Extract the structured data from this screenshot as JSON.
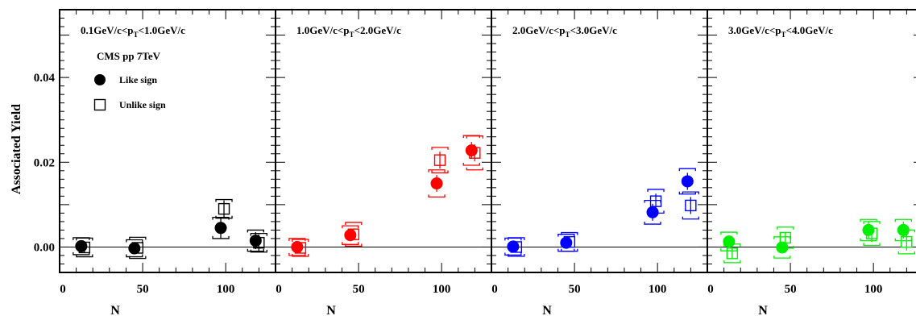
{
  "chart_data": {
    "type": "scatter",
    "ylabel": "Associated Yield",
    "xlabel": "N",
    "ylim": [
      -0.006,
      0.056
    ],
    "xlim": [
      0,
      130
    ],
    "yticks": [
      "0.00",
      "0.02",
      "0.04"
    ],
    "ytick_values": [
      0,
      0.02,
      0.04
    ],
    "xticks": [
      "0",
      "50",
      "100"
    ],
    "xtick_values": [
      0,
      50,
      100
    ],
    "legend": {
      "system": "CMS pp 7TeV",
      "entries": [
        {
          "marker": "filled-circle",
          "label": "Like sign"
        },
        {
          "marker": "open-square",
          "label": "Unlike sign"
        }
      ]
    },
    "panels": [
      {
        "title": "0.1GeV/c<p",
        "title_sub": "T",
        "title_rest": "<1.0GeV/c",
        "color": "#000000",
        "like": [
          {
            "x": 14,
            "y": 0.0002,
            "err": 0.0013,
            "sys": 0.002
          },
          {
            "x": 46,
            "y": -0.0003,
            "err": 0.0013,
            "sys": 0.002
          },
          {
            "x": 98,
            "y": 0.0045,
            "err": 0.0025,
            "sys": 0.0025
          },
          {
            "x": 119,
            "y": 0.0015,
            "err": 0.002,
            "sys": 0.0025
          }
        ],
        "unlike": [
          {
            "x": 14,
            "y": -0.0001,
            "err": 0.0013,
            "sys": 0.0022
          },
          {
            "x": 46,
            "y": -0.0002,
            "err": 0.0013,
            "sys": 0.0025
          },
          {
            "x": 98,
            "y": 0.009,
            "err": 0.002,
            "sys": 0.0022
          },
          {
            "x": 119,
            "y": 0.001,
            "err": 0.002,
            "sys": 0.0022
          }
        ]
      },
      {
        "title": "1.0GeV/c<p",
        "title_sub": "T",
        "title_rest": "<2.0GeV/c",
        "color": "#ff0000",
        "like": [
          {
            "x": 14,
            "y": 0.0,
            "err": 0.0012,
            "sys": 0.002
          },
          {
            "x": 46,
            "y": 0.0028,
            "err": 0.0012,
            "sys": 0.0022
          },
          {
            "x": 98,
            "y": 0.015,
            "err": 0.002,
            "sys": 0.0032
          },
          {
            "x": 119,
            "y": 0.0228,
            "err": 0.002,
            "sys": 0.0035
          }
        ],
        "unlike": [
          {
            "x": 14,
            "y": -0.0002,
            "err": 0.0012,
            "sys": 0.002
          },
          {
            "x": 46,
            "y": 0.003,
            "err": 0.0012,
            "sys": 0.0028
          },
          {
            "x": 98,
            "y": 0.0205,
            "err": 0.002,
            "sys": 0.003
          },
          {
            "x": 119,
            "y": 0.0222,
            "err": 0.002,
            "sys": 0.004
          }
        ]
      },
      {
        "title": "2.0GeV/c<p",
        "title_sub": "T",
        "title_rest": "<3.0GeV/c",
        "color": "#0000ff",
        "like": [
          {
            "x": 14,
            "y": 0.0001,
            "err": 0.0012,
            "sys": 0.002
          },
          {
            "x": 46,
            "y": 0.001,
            "err": 0.0012,
            "sys": 0.002
          },
          {
            "x": 98,
            "y": 0.0082,
            "err": 0.002,
            "sys": 0.0028
          },
          {
            "x": 119,
            "y": 0.0155,
            "err": 0.002,
            "sys": 0.003
          }
        ],
        "unlike": [
          {
            "x": 14,
            "y": 0.0,
            "err": 0.0012,
            "sys": 0.0022
          },
          {
            "x": 46,
            "y": 0.0012,
            "err": 0.0012,
            "sys": 0.0022
          },
          {
            "x": 98,
            "y": 0.0108,
            "err": 0.0018,
            "sys": 0.0028
          },
          {
            "x": 119,
            "y": 0.0098,
            "err": 0.002,
            "sys": 0.0032
          }
        ]
      },
      {
        "title": "3.0GeV/c<p",
        "title_sub": "T",
        "title_rest": "<4.0GeV/c",
        "color": "#00ee00",
        "like": [
          {
            "x": 14,
            "y": 0.0013,
            "err": 0.0012,
            "sys": 0.0022
          },
          {
            "x": 46,
            "y": -0.0001,
            "err": 0.0012,
            "sys": 0.0025
          },
          {
            "x": 98,
            "y": 0.004,
            "err": 0.002,
            "sys": 0.0025
          },
          {
            "x": 119,
            "y": 0.004,
            "err": 0.002,
            "sys": 0.0025
          }
        ],
        "unlike": [
          {
            "x": 14,
            "y": -0.0015,
            "err": 0.0012,
            "sys": 0.0022
          },
          {
            "x": 46,
            "y": 0.0022,
            "err": 0.0012,
            "sys": 0.0025
          },
          {
            "x": 98,
            "y": 0.0032,
            "err": 0.002,
            "sys": 0.0028
          },
          {
            "x": 119,
            "y": 0.0012,
            "err": 0.002,
            "sys": 0.0028
          }
        ]
      }
    ]
  }
}
